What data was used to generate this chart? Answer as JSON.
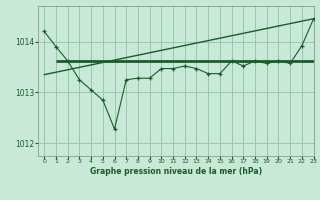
{
  "title": "Graphe pression niveau de la mer (hPa)",
  "bg_color": "#c8e8d8",
  "grid_color": "#98c8b0",
  "line_color": "#1a5c28",
  "xlim": [
    -0.5,
    23
  ],
  "ylim": [
    1011.75,
    1014.7
  ],
  "yticks": [
    1012,
    1013,
    1014
  ],
  "xticks": [
    0,
    1,
    2,
    3,
    4,
    5,
    6,
    7,
    8,
    9,
    10,
    11,
    12,
    13,
    14,
    15,
    16,
    17,
    18,
    19,
    20,
    21,
    22,
    23
  ],
  "series1_x": [
    0,
    1,
    2,
    3,
    4,
    5,
    6,
    7,
    8,
    9,
    10,
    11,
    12,
    13,
    14,
    15,
    16,
    17,
    18,
    19,
    20,
    21,
    22,
    23
  ],
  "series1_y": [
    1014.2,
    1013.9,
    1013.62,
    1013.25,
    1013.05,
    1012.85,
    1012.28,
    1013.25,
    1013.28,
    1013.28,
    1013.47,
    1013.47,
    1013.52,
    1013.47,
    1013.37,
    1013.37,
    1013.62,
    1013.52,
    1013.62,
    1013.57,
    1013.62,
    1013.57,
    1013.92,
    1014.45
  ],
  "series2_x": [
    1,
    23
  ],
  "series2_y": [
    1013.62,
    1013.62
  ],
  "series3_x": [
    0,
    23
  ],
  "series3_y": [
    1013.35,
    1014.45
  ]
}
